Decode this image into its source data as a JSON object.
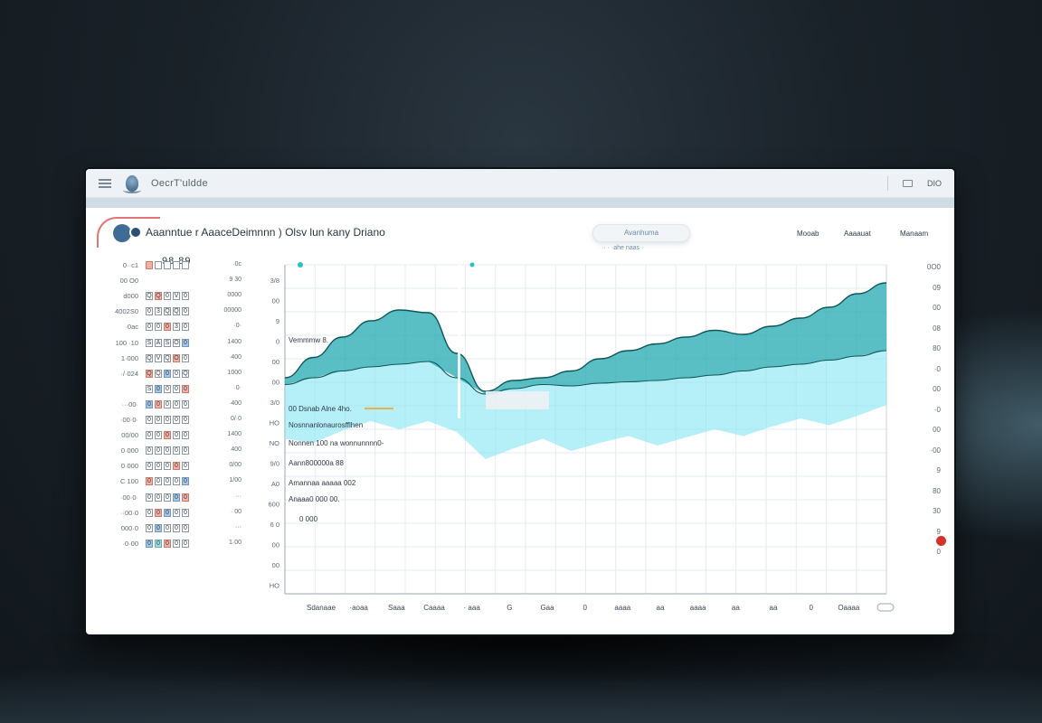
{
  "window": {
    "app_name": "OecrT'uldde",
    "right_text": "DIO"
  },
  "header": {
    "page_title": "Aaanntue r AaaceDeimnnn ) Olsv lun kany Driano",
    "search_pill": "Avanhuma",
    "search_sub": "··  ·  ·ahe  naas   ·",
    "tabs": [
      "Mooab",
      "Aaaauat",
      "Manaam"
    ]
  },
  "left_table": {
    "big_value": "98 89",
    "rows": [
      {
        "label": "0··c1",
        "cells": [
          "",
          "",
          "",
          "",
          ""
        ],
        "right": "·0c"
      },
      {
        "label": "00 O0",
        "cells": [],
        "right": "9 30"
      },
      {
        "label": "d000",
        "cells": [
          "Q",
          "Q",
          "0",
          "V",
          "0"
        ],
        "right": "0000"
      },
      {
        "label": "4002S0",
        "cells": [
          "0",
          "3",
          "Q",
          "Q",
          "0"
        ],
        "right": "00000"
      },
      {
        "label": "·0ac",
        "cells": [
          "0",
          "0",
          "0",
          "3",
          "0"
        ],
        "right": "·0·"
      },
      {
        "label": "100 ·10",
        "cells": [
          "S",
          "A",
          "S",
          "O",
          "0"
        ],
        "right": "1400"
      },
      {
        "label": "1·000",
        "cells": [
          "Q",
          "V",
          "Q",
          "O",
          "0"
        ],
        "right": "·400"
      },
      {
        "label": "·/·024",
        "cells": [
          "Q",
          "Q",
          "0",
          "0",
          "Q"
        ],
        "right": "1000"
      },
      {
        "label": "",
        "cells": [
          "S",
          "0",
          "0",
          "0",
          "0"
        ],
        "right": "·0·"
      },
      {
        "label": "···00·",
        "cells": [
          "0",
          "0",
          "0",
          "0",
          "0"
        ],
        "right": "·400"
      },
      {
        "label": "·00·0·",
        "cells": [
          "0",
          "0",
          "0",
          "0",
          "0"
        ],
        "right": "0/·0"
      },
      {
        "label": "00/00",
        "cells": [
          "0",
          "0",
          "0",
          "0",
          "0"
        ],
        "right": "1400"
      },
      {
        "label": "0·000",
        "cells": [
          "0",
          "0",
          "0",
          "0",
          "0"
        ],
        "right": "400"
      },
      {
        "label": "0·000",
        "cells": [
          "0",
          "0",
          "0",
          "0",
          "0"
        ],
        "right": "0/00"
      },
      {
        "label": "C 100",
        "cells": [
          "0",
          "0",
          "0",
          "0",
          "0"
        ],
        "right": "1/00"
      },
      {
        "label": "·00·0·",
        "cells": [
          "0",
          "0",
          "0",
          "0",
          "0"
        ],
        "right": "···"
      },
      {
        "label": "··00·0",
        "cells": [
          "0",
          "0",
          "0",
          "0",
          "0"
        ],
        "right": "· 00"
      },
      {
        "label": "000·0",
        "cells": [
          "0",
          "0",
          "0",
          "0",
          "0"
        ],
        "right": "···"
      },
      {
        "label": "·0·00",
        "cells": [
          "0",
          "0",
          "0",
          "0",
          "0"
        ],
        "right": "1·00"
      }
    ]
  },
  "chart": {
    "annotations": [
      "Vemmmw 8.",
      "00 Dsnab Alne 4ho.",
      "Nosnnanlonaurosfflhen",
      "Nonnen 100 na wonnunnnn0-",
      "Aann800000a 88",
      "Amannaa aaaaa 002",
      "Anaaa0 000 00.",
      "0 000"
    ],
    "y_left": [
      "3/8",
      "00",
      "9",
      "0",
      "00",
      "00",
      "3/0",
      "HO",
      "NO",
      "9/0",
      "A0",
      "600",
      "6 0",
      "00",
      "00",
      "HO"
    ],
    "x_labels": [
      "Sdanaae",
      "·aoaa",
      "Saaa",
      "Caaaa",
      "· aaa",
      "G",
      "Gaa",
      "0",
      "aaaa",
      "aa",
      "aaaa",
      "aa",
      "aa",
      "0",
      "Oaaaa",
      ""
    ]
  },
  "right_axis": {
    "labels": [
      "0O0",
      "09",
      "00",
      "08",
      "80",
      "·0",
      "00",
      "·0",
      "00",
      "·00",
      "9",
      "80",
      "30",
      "9",
      "0"
    ]
  },
  "chart_data": {
    "type": "area",
    "series": [
      {
        "values": [
          0.3,
          0.45,
          0.6,
          0.72,
          0.8,
          0.78,
          0.48,
          0.2,
          0.28,
          0.3,
          0.35,
          0.44,
          0.5,
          0.55,
          0.6,
          0.65,
          0.62,
          0.68,
          0.74,
          0.82,
          0.92,
          1.0
        ]
      },
      {
        "values": [
          0.25,
          0.3,
          0.35,
          0.38,
          0.4,
          0.42,
          0.3,
          0.18,
          0.22,
          0.25,
          0.24,
          0.26,
          0.27,
          0.28,
          0.3,
          0.32,
          0.35,
          0.38,
          0.4,
          0.43,
          0.46,
          0.5
        ]
      }
    ],
    "colors": [
      "#22a9b1",
      "#8ee6f2",
      "#0f5656"
    ]
  }
}
